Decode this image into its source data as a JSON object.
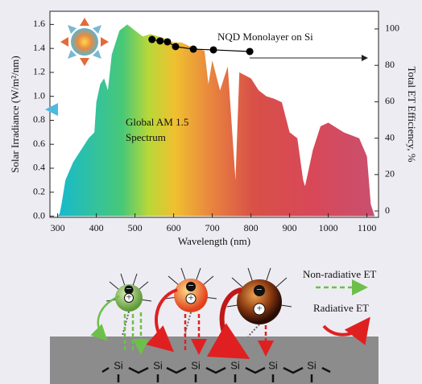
{
  "chart_data": {
    "type": "spectrum",
    "xlabel": "Wavelength (nm)",
    "ylabel": "Solar Irradiance (W/m²/nm)",
    "y2label": "Total ET Efficiency, %",
    "xlim": [
      280,
      1130
    ],
    "xticks": [
      300,
      400,
      500,
      600,
      700,
      800,
      900,
      1000,
      1100
    ],
    "ylim": [
      -0.01,
      1.71
    ],
    "yticks": [
      {
        "value": 0,
        "label": "0.0"
      },
      0.2,
      0.4,
      0.6,
      0.8,
      {
        "value": 1,
        "label": "1.0"
      },
      1.2,
      1.4,
      1.6
    ],
    "y2lim": [
      -3.5,
      109.7
    ],
    "y2ticks": [
      0,
      20,
      40,
      60,
      80,
      100
    ],
    "series": [
      {
        "type": "area",
        "color": "#e07a40",
        "x": [
          300,
          305,
          310,
          320,
          340,
          360,
          380,
          395,
          400,
          410,
          420,
          430,
          440,
          460,
          480,
          500,
          520,
          540,
          560,
          580,
          600,
          620,
          640,
          660,
          680,
          690,
          700,
          720,
          740,
          760,
          770,
          800,
          820,
          840,
          860,
          880,
          900,
          920,
          935,
          940,
          960,
          980,
          1000,
          1040,
          1080,
          1100,
          1110,
          1120
        ],
        "values": [
          0,
          0.02,
          0.1,
          0.3,
          0.45,
          0.55,
          0.65,
          0.7,
          0.95,
          1.1,
          1.15,
          1.05,
          1.35,
          1.55,
          1.6,
          1.55,
          1.5,
          1.52,
          1.5,
          1.48,
          1.45,
          1.45,
          1.42,
          1.4,
          1.38,
          1.1,
          1.3,
          1.05,
          1.25,
          0.3,
          1.2,
          1.15,
          1.05,
          1.0,
          0.98,
          0.95,
          0.7,
          0.65,
          0.3,
          0.25,
          0.55,
          0.75,
          0.78,
          0.7,
          0.65,
          0.5,
          0.1,
          0
        ]
      },
      {
        "type": "scatter",
        "axis": "y2",
        "color": "#000000",
        "x": [
          544,
          565,
          584,
          605,
          651,
          703,
          797
        ],
        "values": [
          94.2,
          93.4,
          92.9,
          90.3,
          88.9,
          88.5,
          87.6
        ]
      }
    ],
    "annotations": [
      {
        "text": "NQD Monolayer on Si"
      },
      {
        "lines": [
          "Global AM 1.5",
          "Spectrum"
        ]
      }
    ]
  },
  "diagram": {
    "charges": [
      "−",
      "+"
    ],
    "atom": "Si",
    "legend": [
      "Non-radiative ET",
      "Radiative ET"
    ]
  }
}
